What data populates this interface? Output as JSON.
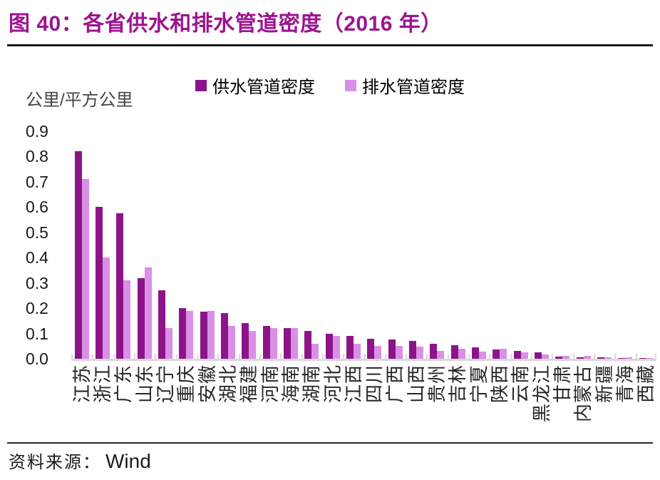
{
  "figure": {
    "title": "图 40：各省供水和排水管道密度（2016 年）",
    "source_label": "资料来源：",
    "source_value": "Wind"
  },
  "colors": {
    "title": "#9d138f",
    "supply_series": "#8c1488",
    "drainage_series": "#da8fe6",
    "axis_line": "#d9d9d9",
    "text": "#1a1a1a"
  },
  "chart_data": {
    "type": "bar",
    "title": "各省供水和排水管道密度（2016 年）",
    "unit_label": "公里/平方公里",
    "xlabel": "",
    "ylabel": "公里/平方公里",
    "ylim": [
      0,
      0.9
    ],
    "ytick_step": 0.1,
    "ytick_labels_top_down": [
      "0.9",
      "0.8",
      "0.7",
      "0.6",
      "0.5",
      "0.4",
      "0.3",
      "0.2",
      "0.1",
      "0.0"
    ],
    "grid": false,
    "legend_position": "top",
    "categories": [
      "江苏",
      "浙江",
      "广东",
      "山东",
      "辽宁",
      "重庆",
      "安徽",
      "湖北",
      "福建",
      "河南",
      "海南",
      "湖南",
      "河北",
      "江西",
      "四川",
      "广西",
      "山西",
      "贵州",
      "吉林",
      "宁夏",
      "陕西",
      "云南",
      "黑龙江",
      "甘肃",
      "内蒙古",
      "新疆",
      "青海",
      "西藏"
    ],
    "series": [
      {
        "name": "供水管道密度",
        "color": "#8c1488",
        "values": [
          0.82,
          0.6,
          0.575,
          0.32,
          0.27,
          0.2,
          0.185,
          0.18,
          0.14,
          0.13,
          0.12,
          0.11,
          0.1,
          0.09,
          0.08,
          0.075,
          0.07,
          0.06,
          0.055,
          0.045,
          0.038,
          0.03,
          0.025,
          0.009,
          0.006,
          0.005,
          0.004,
          0.002
        ]
      },
      {
        "name": "排水管道密度",
        "color": "#da8fe6",
        "values": [
          0.71,
          0.4,
          0.31,
          0.36,
          0.12,
          0.19,
          0.19,
          0.13,
          0.11,
          0.12,
          0.12,
          0.06,
          0.09,
          0.058,
          0.05,
          0.05,
          0.048,
          0.032,
          0.04,
          0.028,
          0.04,
          0.025,
          0.018,
          0.011,
          0.01,
          0.007,
          0.005,
          0.003
        ]
      }
    ]
  }
}
